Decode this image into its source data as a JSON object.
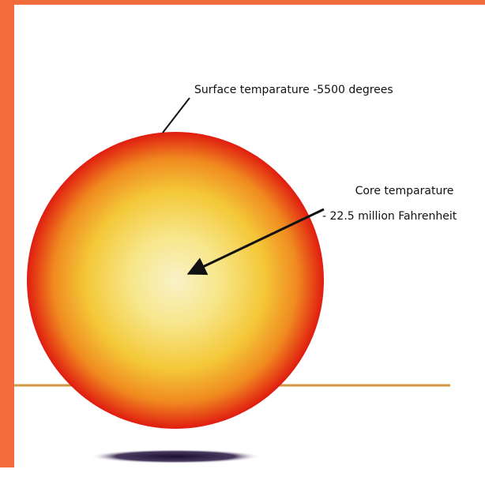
{
  "labels": {
    "surface": "Surface temparature -5500 degrees",
    "core_title": "Core temparature",
    "core_value": "- 22.5 million Fahrenheit"
  }
}
